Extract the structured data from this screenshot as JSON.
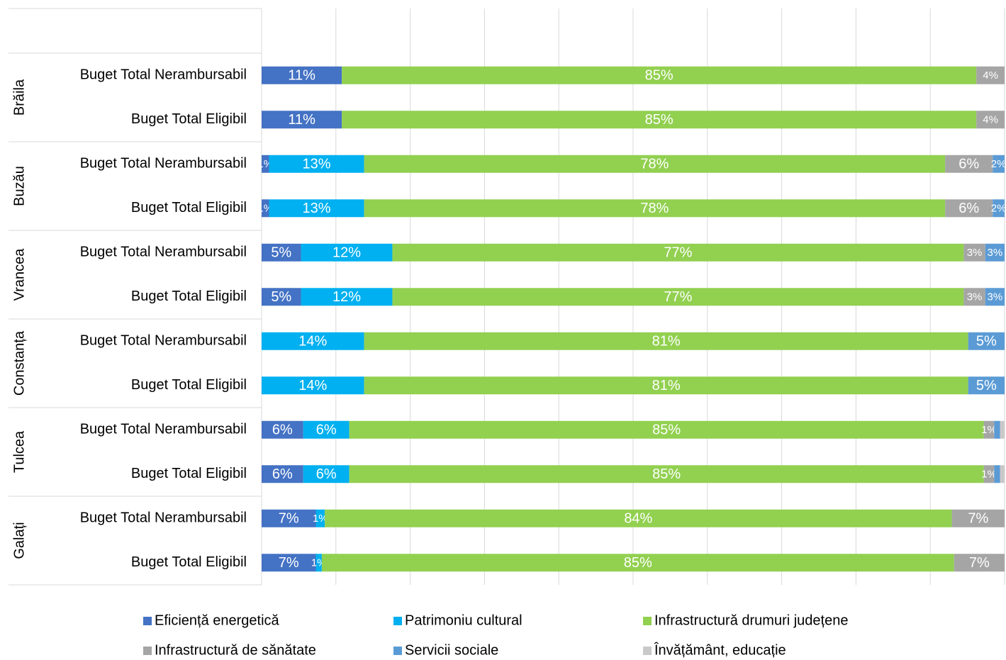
{
  "chart_data": {
    "type": "bar",
    "orientation": "horizontal",
    "stacked": true,
    "groups": [
      "Brăila",
      "Buzău",
      "Vrancea",
      "Constanța",
      "Tulcea",
      "Galați"
    ],
    "categories": [
      "Buget Total Nerambursabil",
      "Buget Total Eligibil",
      "Buget Total Nerambursabil",
      "Buget Total Eligibil",
      "Buget Total Nerambursabil",
      "Buget Total Eligibil",
      "Buget Total Nerambursabil",
      "Buget Total Eligibil",
      "Buget Total Nerambursabil",
      "Buget Total Eligibil",
      "Buget Total Nerambursabil",
      "Buget Total Eligibil"
    ],
    "series": [
      {
        "name": "Eficiență energetică",
        "color": "#4472c4",
        "values": [
          10.8,
          10.8,
          1.0,
          1.0,
          5.3,
          5.3,
          0,
          0,
          5.6,
          5.6,
          7.3,
          7.3
        ],
        "value_labels": [
          "11%",
          "11%",
          "1%",
          "1%",
          "5%",
          "5%",
          null,
          null,
          "6%",
          "6%",
          "7%",
          "7%"
        ]
      },
      {
        "name": "Patrimoniu cultural",
        "color": "#00b0f0",
        "values": [
          0,
          0,
          12.8,
          12.8,
          12.3,
          12.3,
          13.8,
          13.8,
          6.2,
          6.2,
          1.2,
          0.8
        ],
        "value_labels": [
          null,
          null,
          "13%",
          "13%",
          "12%",
          "12%",
          "14%",
          "14%",
          "6%",
          "6%",
          "1%",
          "1%"
        ]
      },
      {
        "name": "Infrastructură drumuri județene",
        "color": "#92d050",
        "values": [
          85.4,
          85.4,
          78.2,
          78.2,
          76.9,
          76.9,
          81.3,
          81.3,
          85.4,
          85.4,
          84.4,
          85.1
        ],
        "value_labels": [
          "85%",
          "85%",
          "78%",
          "78%",
          "77%",
          "77%",
          "81%",
          "81%",
          "85%",
          "85%",
          "84%",
          "85%"
        ]
      },
      {
        "name": "Infrastructură de sănătate",
        "color": "#a5a5a5",
        "values": [
          3.8,
          3.8,
          6.4,
          6.4,
          2.9,
          2.9,
          0,
          0,
          1.4,
          1.4,
          7.1,
          6.8
        ],
        "value_labels": [
          "4%",
          "4%",
          "6%",
          "6%",
          "3%",
          "3%",
          null,
          null,
          "1%",
          "1%",
          "7%",
          "7%"
        ]
      },
      {
        "name": "Servicii sociale",
        "color": "#5b9bd5",
        "values": [
          0,
          0,
          1.6,
          1.6,
          2.6,
          2.6,
          4.9,
          4.9,
          0.8,
          0.8,
          0,
          0
        ],
        "value_labels": [
          null,
          null,
          "2%",
          "2%",
          "3%",
          "3%",
          "5%",
          "5%",
          null,
          null,
          null,
          null
        ]
      },
      {
        "name": "Învățământ, educație",
        "color": "#c9c9c9",
        "values": [
          0,
          0,
          0,
          0,
          0,
          0,
          0,
          0,
          0.6,
          0.6,
          0,
          0
        ],
        "value_labels": [
          null,
          null,
          null,
          null,
          null,
          null,
          null,
          null,
          null,
          null,
          null,
          null
        ]
      }
    ],
    "xlim": [
      0,
      100
    ],
    "xticks": [
      0,
      10,
      20,
      30,
      40,
      50,
      60,
      70,
      80,
      90,
      100
    ],
    "grid": true,
    "legend": "bottom"
  }
}
